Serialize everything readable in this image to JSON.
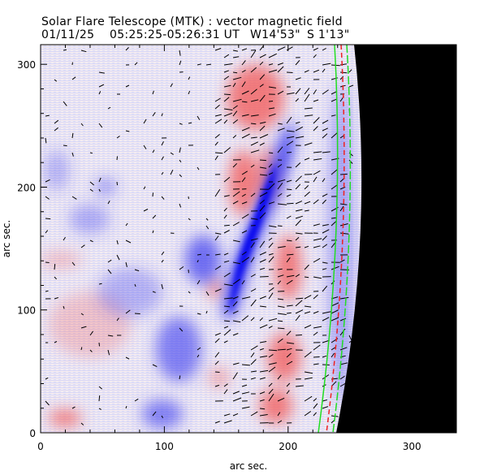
{
  "title": "Solar Flare Telescope (MTK) : vector magnetic field",
  "subtitle": {
    "date": "01/11/25",
    "time": "05:25:25-05:26:31 UT",
    "lon": "W14'53\"",
    "lat": "S 1'13\""
  },
  "chart_data": {
    "type": "heatmap",
    "title": "Solar Flare Telescope (MTK) : vector magnetic field",
    "xlabel": "arc sec.",
    "ylabel": "arc sec.",
    "xlim": [
      0,
      336
    ],
    "ylim": [
      0,
      316
    ],
    "xticks": [
      "0",
      "100",
      "200",
      "300"
    ],
    "yticks": [
      "0",
      "100",
      "200",
      "300"
    ],
    "colors": {
      "positive": "#ff3030",
      "negative": "#1a1aff",
      "background": "#f2eef5",
      "off_limb": "#000000",
      "vector": "#000000"
    }
  }
}
